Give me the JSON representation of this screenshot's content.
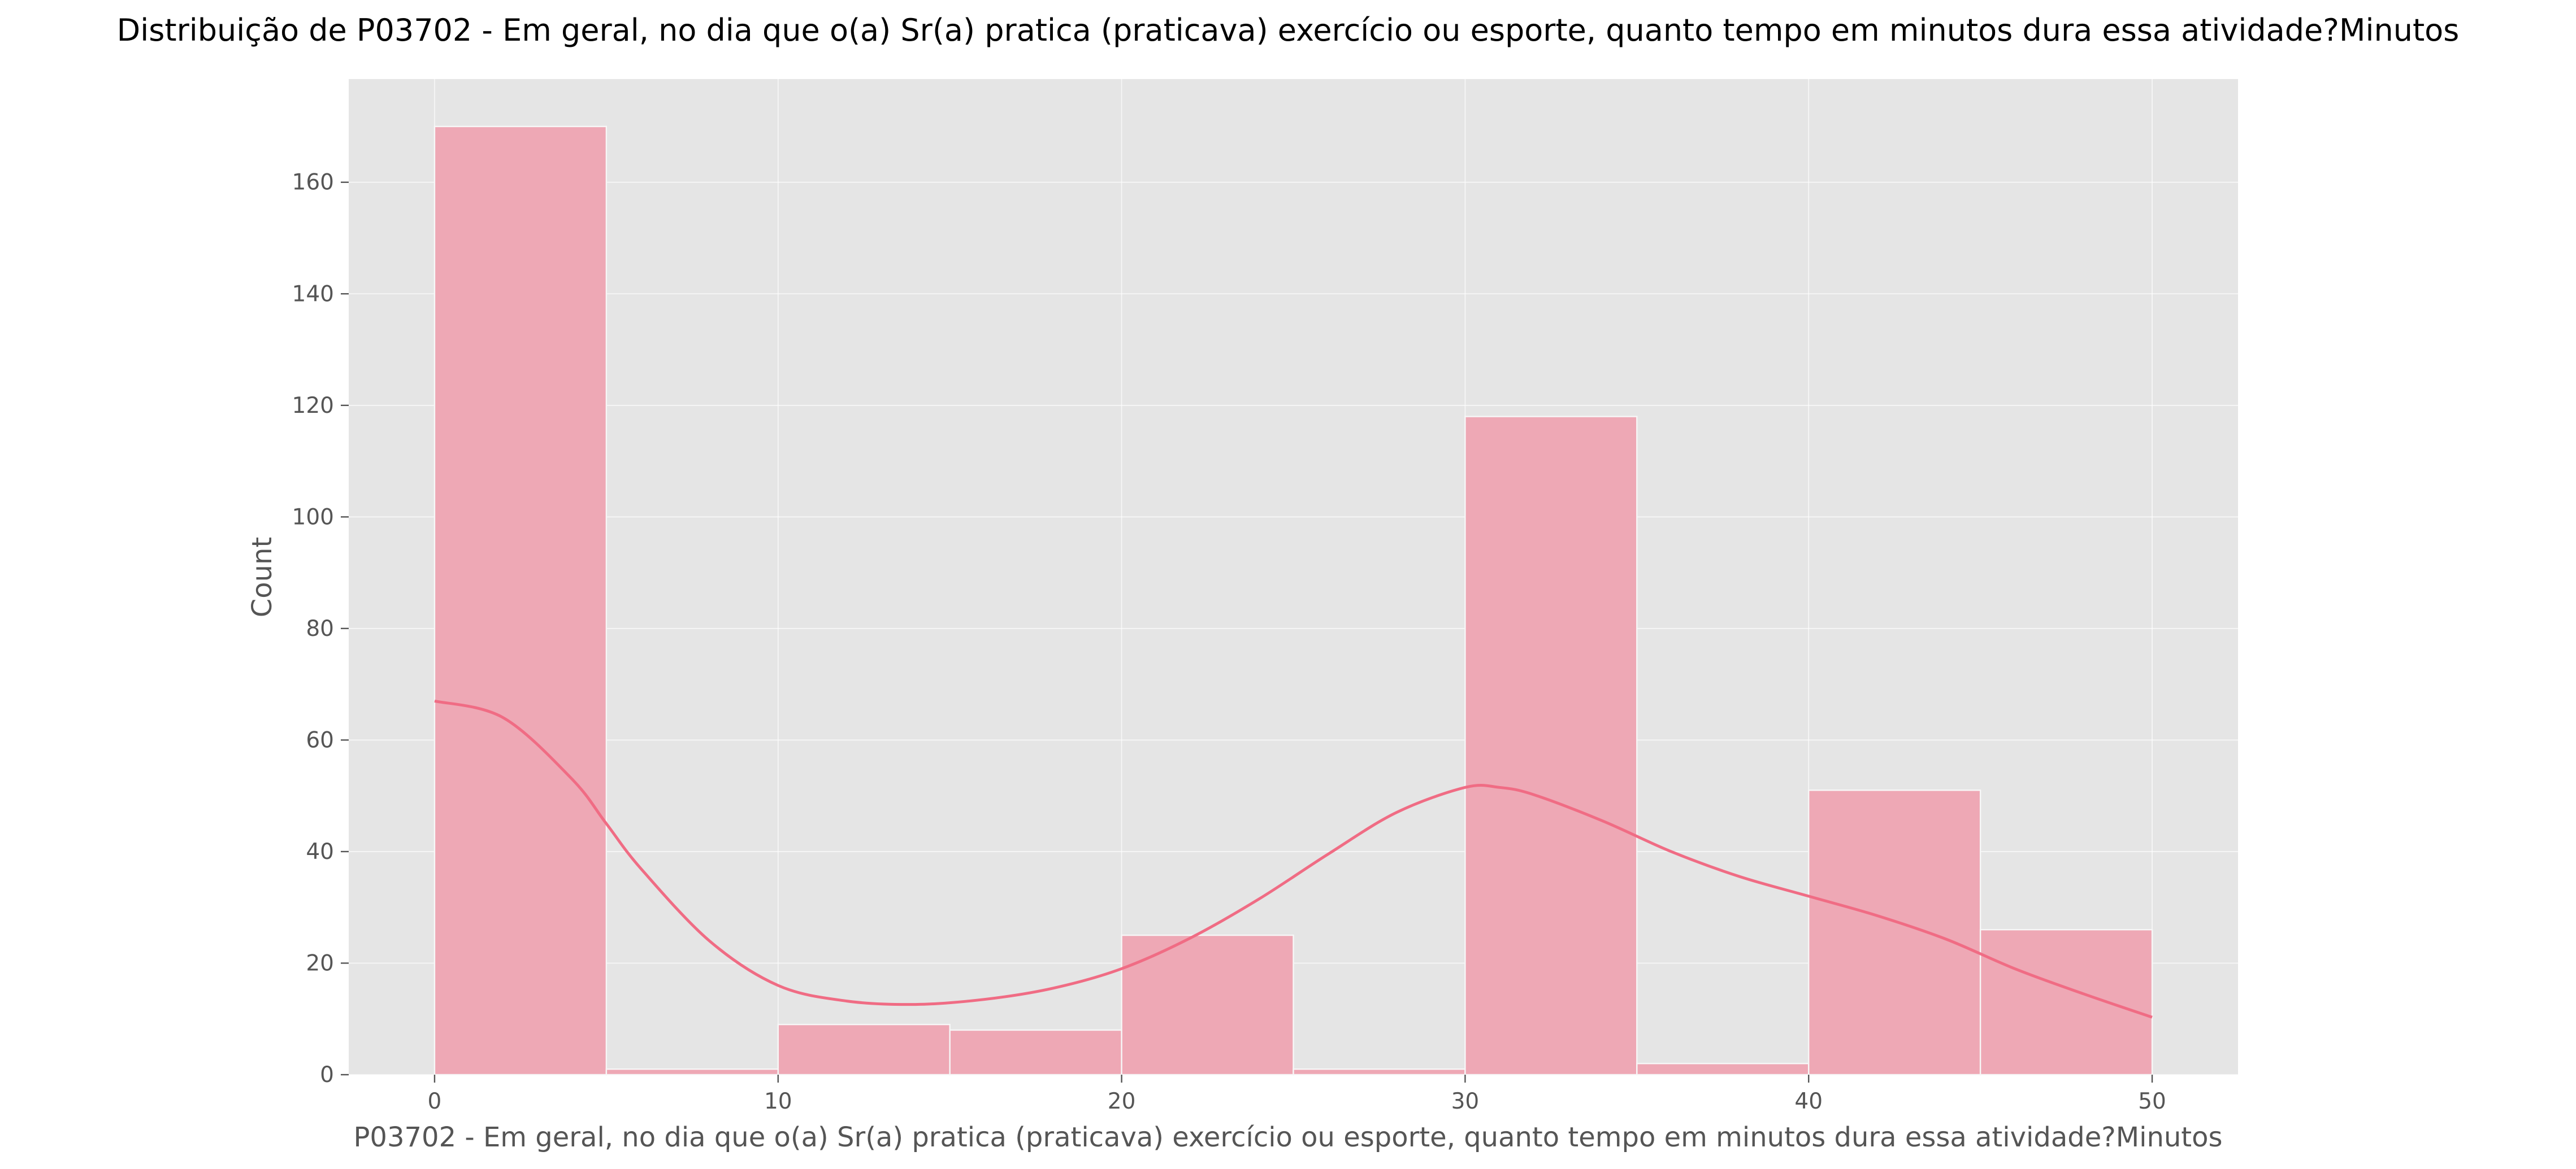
{
  "chart_data": {
    "type": "histogram",
    "title": "Distribuição de P03702 - Em geral, no dia que o(a) Sr(a) pratica (praticava) exercício ou esporte, quanto tempo em minutos dura essa atividade?Minutos",
    "xlabel": "P03702 - Em geral, no dia que o(a) Sr(a) pratica (praticava) exercício ou esporte, quanto tempo em minutos dura essa atividade?Minutos",
    "ylabel": "Count",
    "xlim": [
      -2.5,
      52.5
    ],
    "ylim": [
      0,
      178.5
    ],
    "x_ticks": [
      0,
      10,
      20,
      30,
      40,
      50
    ],
    "y_ticks": [
      0,
      20,
      40,
      60,
      80,
      100,
      120,
      140,
      160
    ],
    "grid": true,
    "bins": [
      {
        "start": 0,
        "end": 5,
        "count": 170
      },
      {
        "start": 5,
        "end": 10,
        "count": 1
      },
      {
        "start": 10,
        "end": 15,
        "count": 9
      },
      {
        "start": 15,
        "end": 20,
        "count": 8
      },
      {
        "start": 20,
        "end": 25,
        "count": 25
      },
      {
        "start": 25,
        "end": 30,
        "count": 1
      },
      {
        "start": 30,
        "end": 35,
        "count": 118
      },
      {
        "start": 35,
        "end": 40,
        "count": 2
      },
      {
        "start": 40,
        "end": 45,
        "count": 51
      },
      {
        "start": 45,
        "end": 50,
        "count": 26
      }
    ],
    "kde": {
      "x": [
        0,
        2,
        4,
        5,
        6,
        8,
        10,
        12,
        14,
        16,
        18,
        20,
        22,
        24,
        26,
        28,
        30,
        31,
        32,
        34,
        36,
        38,
        40,
        42,
        44,
        46,
        48,
        50
      ],
      "y": [
        67,
        64,
        53,
        45,
        37,
        24,
        16,
        13.2,
        12.6,
        13.5,
        15.5,
        19,
        24.5,
        31.5,
        39.5,
        47,
        51.5,
        51.5,
        50.2,
        45.5,
        40,
        35.5,
        32,
        28.5,
        24.3,
        19,
        14.5,
        10.3
      ]
    },
    "colors": {
      "background": "#e5e5e5",
      "bar": "#eea8b5",
      "kde_line": "#f06c84"
    }
  }
}
